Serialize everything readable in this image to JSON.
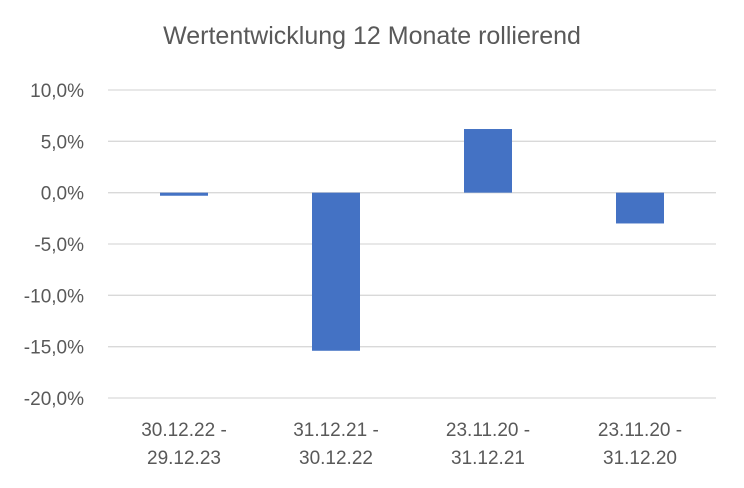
{
  "chart_data": {
    "type": "bar",
    "title": "Wertentwicklung 12 Monate rollierend",
    "categories": [
      [
        "30.12.22 -",
        "29.12.23"
      ],
      [
        "31.12.21 -",
        "30.12.22"
      ],
      [
        "23.11.20 -",
        "31.12.21"
      ],
      [
        "23.11.20 -",
        "31.12.20"
      ]
    ],
    "values": [
      -0.3,
      -15.4,
      6.2,
      -3.0
    ],
    "ylim": [
      -20,
      10
    ],
    "yticks": [
      10,
      5,
      0,
      -5,
      -10,
      -15,
      -20
    ],
    "ytick_labels": [
      "10,0%",
      "5,0%",
      "0,0%",
      "-5,0%",
      "-10,0%",
      "-15,0%",
      "-20,0%"
    ],
    "xlabel": "",
    "ylabel": "",
    "grid": true,
    "legend": "none",
    "colors": {
      "bar": "#4472C4",
      "grid": "#D9D9D9",
      "text": "#595959"
    }
  }
}
